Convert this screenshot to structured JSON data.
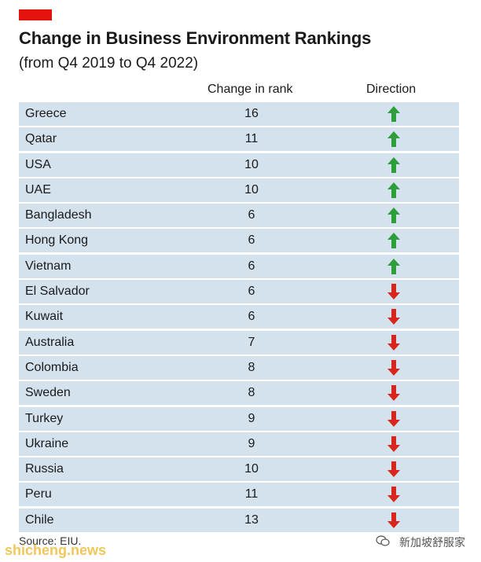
{
  "header": {
    "title": "Change in Business Environment Rankings",
    "subtitle": "(from Q4 2019 to Q4 2022)"
  },
  "columns": {
    "change": "Change in rank",
    "direction": "Direction"
  },
  "colors": {
    "accent": "#e3120b",
    "row_bg": "#d4e2ed",
    "up": "#2e9e3a",
    "down": "#d7261d"
  },
  "chart_data": {
    "type": "table",
    "title": "Change in Business Environment Rankings",
    "subtitle": "(from Q4 2019 to Q4 2022)",
    "columns": [
      "Change in rank",
      "Direction"
    ],
    "rows": [
      {
        "country": "Greece",
        "change": 16,
        "direction": "up"
      },
      {
        "country": "Qatar",
        "change": 11,
        "direction": "up"
      },
      {
        "country": "USA",
        "change": 10,
        "direction": "up"
      },
      {
        "country": "UAE",
        "change": 10,
        "direction": "up"
      },
      {
        "country": "Bangladesh",
        "change": 6,
        "direction": "up"
      },
      {
        "country": "Hong Kong",
        "change": 6,
        "direction": "up"
      },
      {
        "country": "Vietnam",
        "change": 6,
        "direction": "up"
      },
      {
        "country": "El Salvador",
        "change": 6,
        "direction": "down"
      },
      {
        "country": "Kuwait",
        "change": 6,
        "direction": "down"
      },
      {
        "country": "Australia",
        "change": 7,
        "direction": "down"
      },
      {
        "country": "Colombia",
        "change": 8,
        "direction": "down"
      },
      {
        "country": "Sweden",
        "change": 8,
        "direction": "down"
      },
      {
        "country": "Turkey",
        "change": 9,
        "direction": "down"
      },
      {
        "country": "Ukraine",
        "change": 9,
        "direction": "down"
      },
      {
        "country": "Russia",
        "change": 10,
        "direction": "down"
      },
      {
        "country": "Peru",
        "change": 11,
        "direction": "down"
      },
      {
        "country": "Chile",
        "change": 13,
        "direction": "down"
      }
    ]
  },
  "footer": {
    "source": "Source: EIU."
  },
  "watermark": {
    "left_text": "shicheng.news",
    "right_text": "新加坡舒服家",
    "icon": "wechat-icon"
  }
}
